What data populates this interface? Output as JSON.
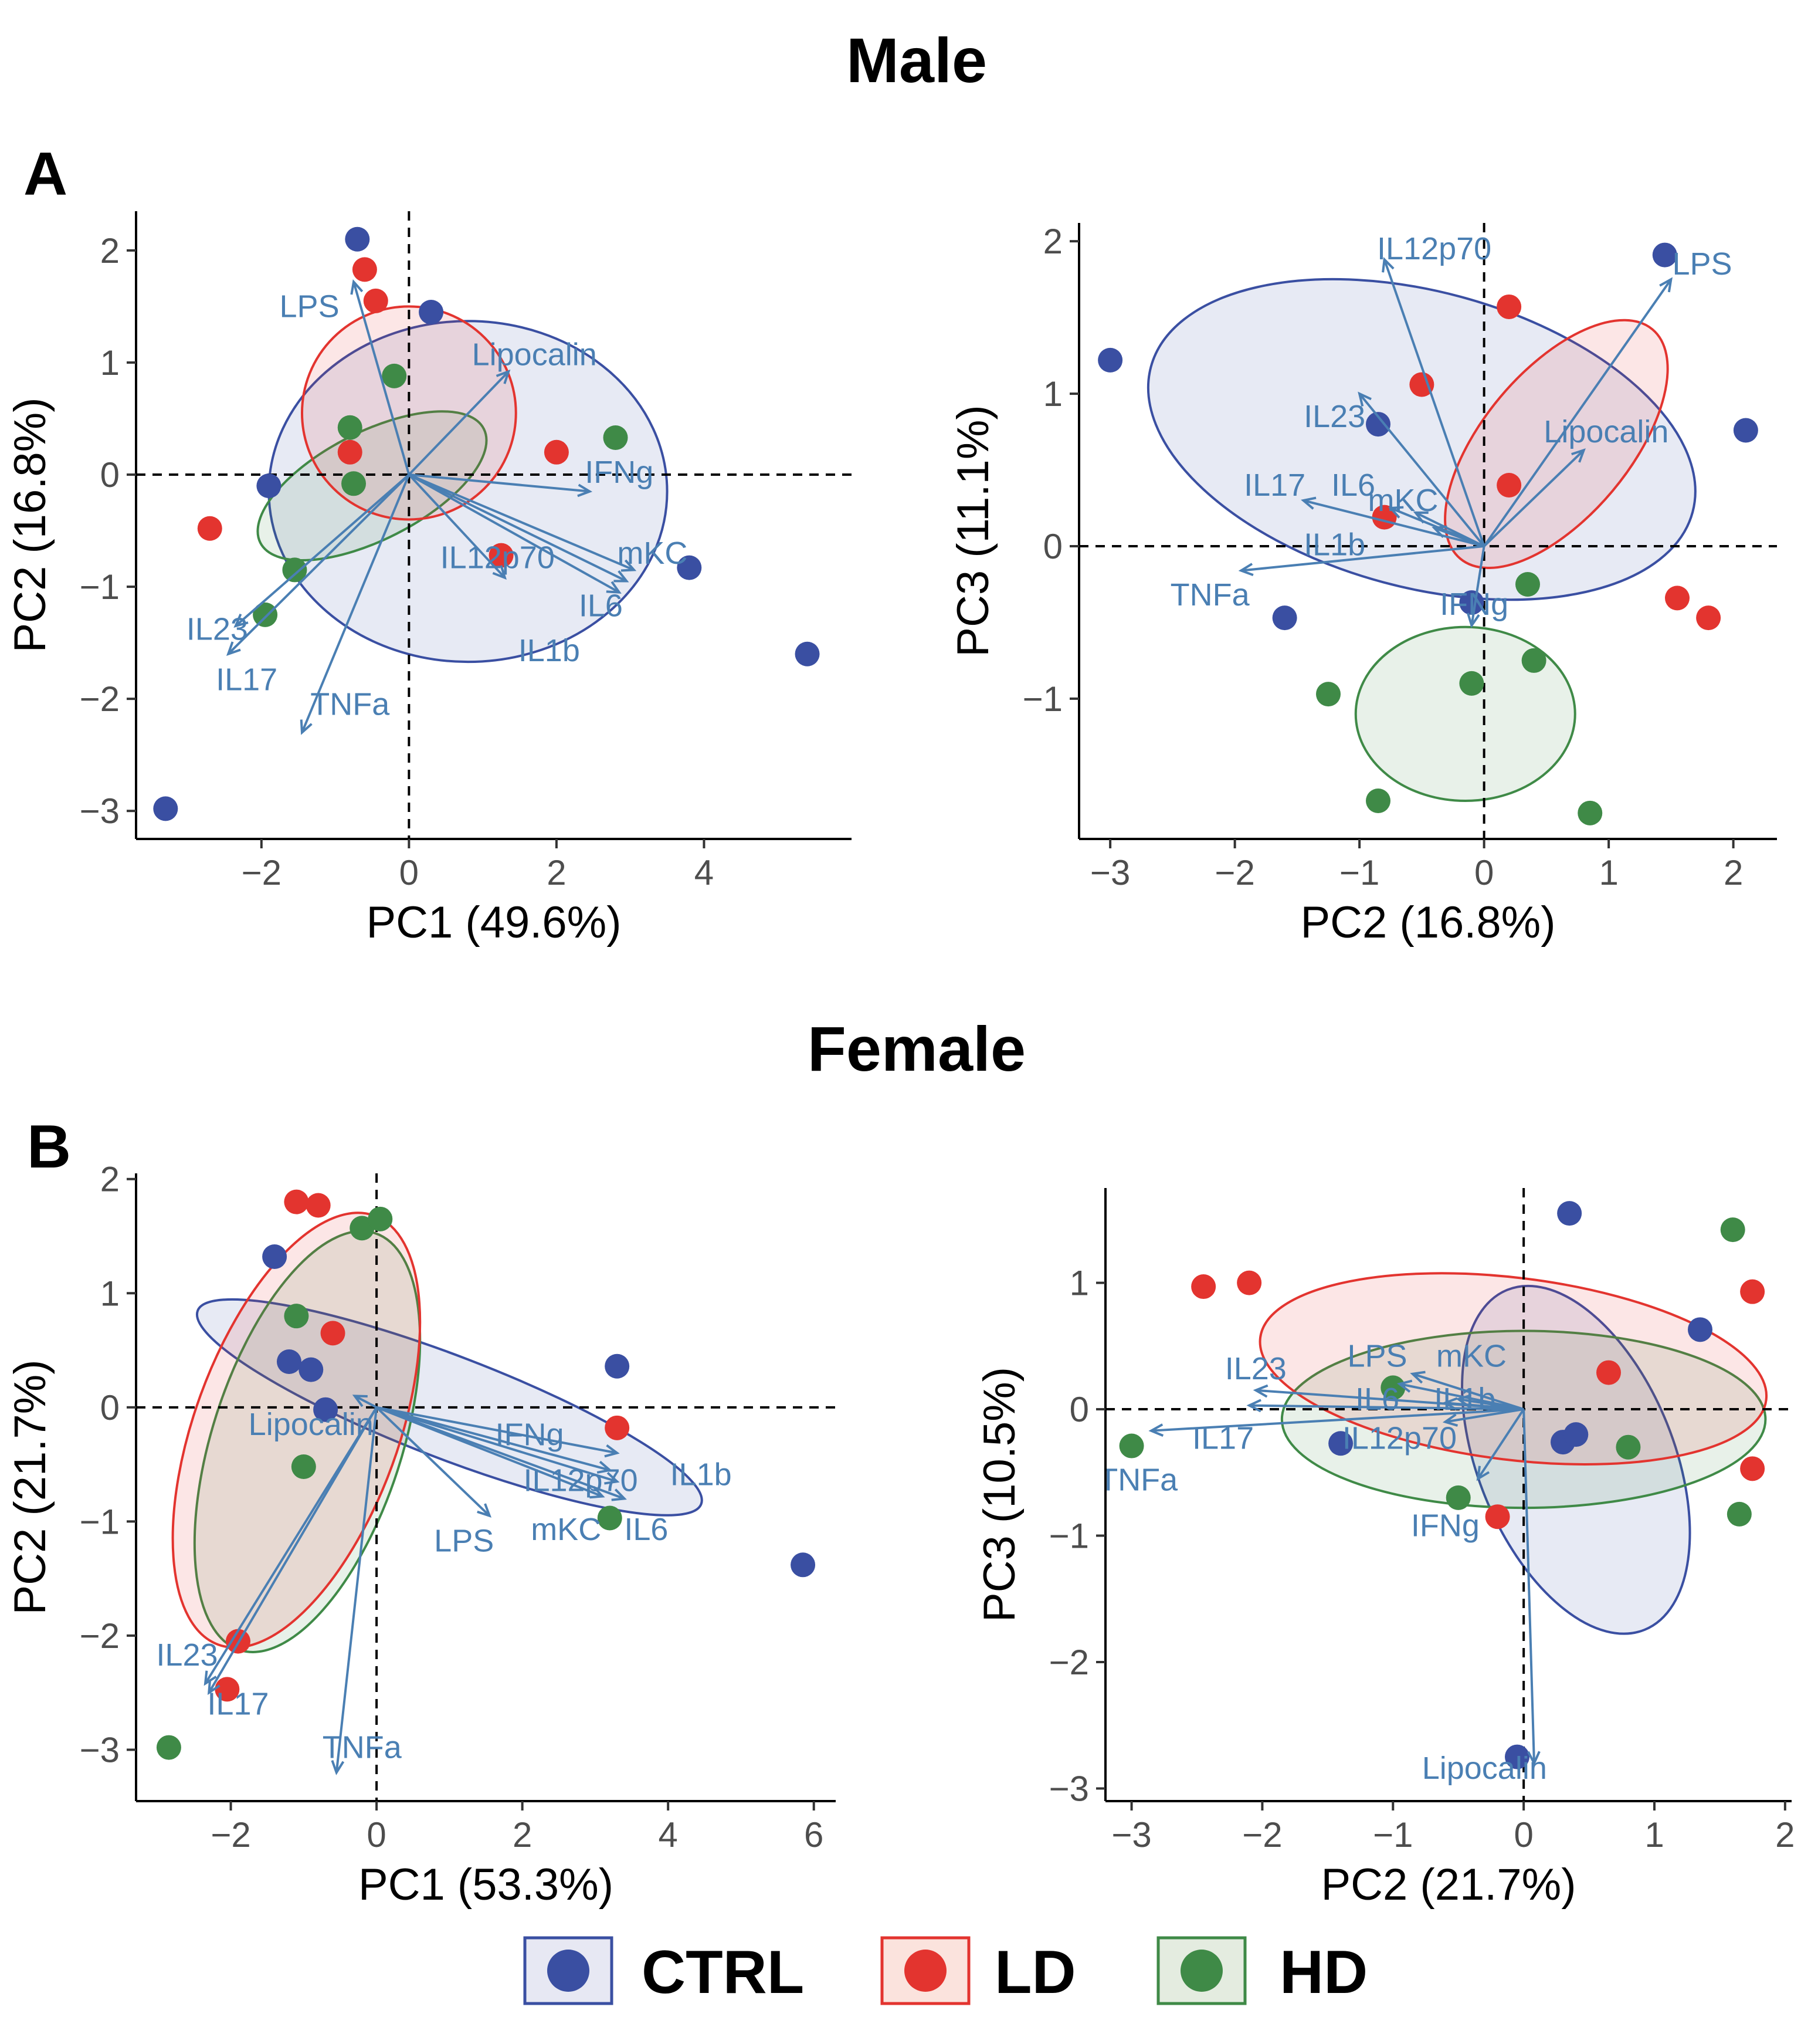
{
  "figure": {
    "sections": [
      {
        "title": "Male",
        "letter": "A"
      },
      {
        "title": "Female",
        "letter": "B"
      }
    ],
    "legend": [
      {
        "label": "CTRL",
        "color": "#3a4fa2",
        "fill": "#e7e8f3"
      },
      {
        "label": "LD",
        "color": "#e3342f",
        "fill": "#fbe3dd"
      },
      {
        "label": "HD",
        "color": "#3f8a47",
        "fill": "#e4ece0"
      }
    ],
    "loading_color": "#4a7fb3"
  },
  "chart_data": [
    {
      "type": "scatter",
      "title": "Male",
      "xlabel": "PC1 (49.6%)",
      "ylabel": "PC2 (16.8%)",
      "xlim": [
        -3.7,
        6.0
      ],
      "ylim": [
        -3.25,
        2.35
      ],
      "xticks": [
        -2,
        0,
        2,
        4
      ],
      "yticks": [
        2,
        1,
        0,
        -1,
        -2,
        -3
      ],
      "xtick_labels": [
        "−2",
        "0",
        "2",
        "4"
      ],
      "ytick_labels": [
        "2",
        "1",
        "0",
        "−1",
        "−2",
        "−3"
      ],
      "series": [
        {
          "name": "CTRL",
          "points": [
            [
              -0.7,
              2.1
            ],
            [
              0.3,
              1.45
            ],
            [
              -1.9,
              -0.1
            ],
            [
              3.8,
              -0.83
            ],
            [
              5.4,
              -1.6
            ],
            [
              -3.3,
              -2.98
            ]
          ]
        },
        {
          "name": "LD",
          "points": [
            [
              -0.6,
              1.83
            ],
            [
              -0.45,
              1.55
            ],
            [
              -0.8,
              0.2
            ],
            [
              2.0,
              0.2
            ],
            [
              -2.7,
              -0.48
            ],
            [
              1.25,
              -0.72
            ]
          ]
        },
        {
          "name": "HD",
          "points": [
            [
              -0.2,
              0.88
            ],
            [
              -0.8,
              0.42
            ],
            [
              -0.75,
              -0.08
            ],
            [
              2.8,
              0.33
            ],
            [
              -1.55,
              -0.85
            ],
            [
              -1.95,
              -1.25
            ]
          ]
        }
      ],
      "ellipses": [
        {
          "group": "CTRL",
          "center": [
            0.8,
            -0.15
          ],
          "semi_axes": [
            2.7,
            1.52
          ],
          "rotation_deg": 0
        },
        {
          "group": "LD",
          "center": [
            0.0,
            0.55
          ],
          "semi_axes": [
            1.45,
            0.95
          ],
          "rotation_deg": 0
        },
        {
          "group": "HD",
          "center": [
            -0.5,
            -0.1
          ],
          "semi_axes": [
            1.7,
            0.48
          ],
          "rotation_deg": -27
        }
      ],
      "loadings": [
        {
          "label": "LPS",
          "tip": [
            -0.75,
            1.72
          ],
          "label_pos": [
            -1.35,
            1.5
          ]
        },
        {
          "label": "Lipocalin",
          "tip": [
            1.35,
            0.92
          ],
          "label_pos": [
            1.7,
            1.07
          ]
        },
        {
          "label": "IFNg",
          "tip": [
            2.45,
            -0.15
          ],
          "label_pos": [
            2.85,
            0.02
          ]
        },
        {
          "label": "IL12p70",
          "tip": [
            1.3,
            -0.92
          ],
          "label_pos": [
            1.2,
            -0.74
          ]
        },
        {
          "label": "mKC",
          "tip": [
            3.05,
            -0.85
          ],
          "label_pos": [
            3.3,
            -0.7
          ]
        },
        {
          "label": "IL6",
          "tip": [
            2.95,
            -0.95
          ],
          "label_pos": [
            2.6,
            -1.17
          ]
        },
        {
          "label": "IL1b",
          "tip": [
            2.85,
            -1.05
          ],
          "label_pos": [
            1.9,
            -1.57
          ]
        },
        {
          "label": "IL23",
          "tip": [
            -2.35,
            -1.35
          ],
          "label_pos": [
            -2.6,
            -1.38
          ]
        },
        {
          "label": "IL17",
          "tip": [
            -2.45,
            -1.6
          ],
          "label_pos": [
            -2.2,
            -1.83
          ]
        },
        {
          "label": "TNFa",
          "tip": [
            -1.45,
            -2.3
          ],
          "label_pos": [
            -0.8,
            -2.05
          ]
        }
      ]
    },
    {
      "type": "scatter",
      "title": "Male",
      "xlabel": "PC2 (16.8%)",
      "ylabel": "PC3 (11.1%)",
      "xlim": [
        -3.25,
        2.35
      ],
      "ylim": [
        -1.92,
        2.12
      ],
      "xticks": [
        -3,
        -2,
        -1,
        0,
        1,
        2
      ],
      "yticks": [
        2,
        1,
        0,
        -1
      ],
      "xtick_labels": [
        "−3",
        "−2",
        "−1",
        "0",
        "1",
        "2"
      ],
      "ytick_labels": [
        "2",
        "1",
        "0",
        "−1"
      ],
      "series": [
        {
          "name": "CTRL",
          "points": [
            [
              -3.0,
              1.22
            ],
            [
              1.45,
              1.91
            ],
            [
              -0.85,
              0.8
            ],
            [
              2.1,
              0.76
            ],
            [
              -1.6,
              -0.47
            ],
            [
              -0.1,
              -0.37
            ]
          ]
        },
        {
          "name": "LD",
          "points": [
            [
              0.2,
              1.57
            ],
            [
              -0.5,
              1.06
            ],
            [
              0.2,
              0.4
            ],
            [
              -0.8,
              0.19
            ],
            [
              1.55,
              -0.34
            ],
            [
              1.8,
              -0.47
            ]
          ]
        },
        {
          "name": "HD",
          "points": [
            [
              0.35,
              -0.25
            ],
            [
              0.4,
              -0.75
            ],
            [
              -0.1,
              -0.9
            ],
            [
              -1.25,
              -0.97
            ],
            [
              -0.85,
              -1.67
            ],
            [
              0.85,
              -1.75
            ]
          ]
        }
      ],
      "ellipses": [
        {
          "group": "CTRL",
          "center": [
            -0.5,
            0.7
          ],
          "semi_axes": [
            2.25,
            0.97
          ],
          "rotation_deg": 15
        },
        {
          "group": "LD",
          "center": [
            0.58,
            0.67
          ],
          "semi_axes": [
            1.2,
            0.48
          ],
          "rotation_deg": -50
        },
        {
          "group": "HD",
          "center": [
            -0.15,
            -1.1
          ],
          "semi_axes": [
            0.88,
            0.57
          ],
          "rotation_deg": 0
        }
      ],
      "loadings": [
        {
          "label": "IL12p70",
          "tip": [
            -0.8,
            1.88
          ],
          "label_pos": [
            -0.4,
            1.95
          ]
        },
        {
          "label": "LPS",
          "tip": [
            1.5,
            1.75
          ],
          "label_pos": [
            1.75,
            1.85
          ]
        },
        {
          "label": "IL23",
          "tip": [
            -1.0,
            1.0
          ],
          "label_pos": [
            -1.2,
            0.85
          ]
        },
        {
          "label": "Lipocalin",
          "tip": [
            0.8,
            0.63
          ],
          "label_pos": [
            0.98,
            0.75
          ]
        },
        {
          "label": "IL17",
          "tip": [
            -1.45,
            0.3
          ],
          "label_pos": [
            -1.68,
            0.4
          ]
        },
        {
          "label": "IL6",
          "tip": [
            -0.75,
            0.25
          ],
          "label_pos": [
            -1.05,
            0.4
          ]
        },
        {
          "label": "mKC",
          "tip": [
            -0.55,
            0.22
          ],
          "label_pos": [
            -0.65,
            0.3
          ]
        },
        {
          "label": "IL1b",
          "tip": [
            -0.4,
            0.12
          ],
          "label_pos": [
            -1.2,
            0.01
          ]
        },
        {
          "label": "TNFa",
          "tip": [
            -1.95,
            -0.16
          ],
          "label_pos": [
            -2.2,
            -0.32
          ]
        },
        {
          "label": "IFNg",
          "tip": [
            -0.1,
            -0.52
          ],
          "label_pos": [
            -0.08,
            -0.38
          ]
        }
      ]
    },
    {
      "type": "scatter",
      "title": "Female",
      "xlabel": "PC1 (53.3%)",
      "ylabel": "PC2 (21.7%)",
      "xlim": [
        -3.3,
        6.3
      ],
      "ylim": [
        -3.45,
        2.05
      ],
      "xticks": [
        -2,
        0,
        2,
        4,
        6
      ],
      "yticks": [
        2,
        1,
        0,
        -1,
        -2,
        -3
      ],
      "xtick_labels": [
        "−2",
        "0",
        "2",
        "4",
        "6"
      ],
      "ytick_labels": [
        "2",
        "1",
        "0",
        "−1",
        "−2",
        "−3"
      ],
      "series": [
        {
          "name": "CTRL",
          "points": [
            [
              -1.4,
              1.32
            ],
            [
              -1.2,
              0.4
            ],
            [
              -0.9,
              0.33
            ],
            [
              -0.7,
              -0.02
            ],
            [
              3.3,
              0.36
            ],
            [
              5.85,
              -1.38
            ]
          ]
        },
        {
          "name": "LD",
          "points": [
            [
              -1.1,
              1.8
            ],
            [
              -0.8,
              1.77
            ],
            [
              -0.6,
              0.65
            ],
            [
              3.3,
              -0.18
            ],
            [
              -1.9,
              -2.05
            ],
            [
              -2.05,
              -2.47
            ]
          ]
        },
        {
          "name": "HD",
          "points": [
            [
              -0.2,
              1.57
            ],
            [
              0.05,
              1.65
            ],
            [
              -1.1,
              0.8
            ],
            [
              -1.0,
              -0.52
            ],
            [
              3.2,
              -0.97
            ],
            [
              -2.85,
              -2.98
            ]
          ]
        }
      ],
      "ellipses": [
        {
          "group": "CTRL",
          "center": [
            1.0,
            0.0
          ],
          "semi_axes": [
            3.7,
            0.45
          ],
          "rotation_deg": 21
        },
        {
          "group": "LD",
          "center": [
            -1.1,
            -0.2
          ],
          "semi_axes": [
            1.4,
            2.0
          ],
          "rotation_deg": 20
        },
        {
          "group": "HD",
          "center": [
            -0.95,
            -0.3
          ],
          "semi_axes": [
            1.3,
            1.92
          ],
          "rotation_deg": 18
        }
      ],
      "loadings": [
        {
          "label": "Lipocalin",
          "tip": [
            -0.3,
            0.1
          ],
          "label_pos": [
            -0.9,
            -0.15
          ]
        },
        {
          "label": "IFNg",
          "tip": [
            3.3,
            -0.4
          ],
          "label_pos": [
            2.1,
            -0.24
          ]
        },
        {
          "label": "IL12p70",
          "tip": [
            3.3,
            -0.65
          ],
          "label_pos": [
            2.8,
            -0.64
          ]
        },
        {
          "label": "IL1b",
          "tip": [
            3.2,
            -0.55
          ],
          "label_pos": [
            4.45,
            -0.59
          ]
        },
        {
          "label": "mKC",
          "tip": [
            3.1,
            -0.78
          ],
          "label_pos": [
            2.6,
            -1.07
          ]
        },
        {
          "label": "IL6",
          "tip": [
            3.4,
            -0.8
          ],
          "label_pos": [
            3.7,
            -1.07
          ]
        },
        {
          "label": "LPS",
          "tip": [
            1.55,
            -0.95
          ],
          "label_pos": [
            1.2,
            -1.17
          ]
        },
        {
          "label": "IL23",
          "tip": [
            -2.3,
            -2.5
          ],
          "label_pos": [
            -2.6,
            -2.17
          ]
        },
        {
          "label": "IL17",
          "tip": [
            -2.35,
            -2.42
          ],
          "label_pos": [
            -1.9,
            -2.6
          ]
        },
        {
          "label": "TNFa",
          "tip": [
            -0.55,
            -3.2
          ],
          "label_pos": [
            -0.2,
            -2.98
          ]
        }
      ]
    },
    {
      "type": "scatter",
      "title": "Female",
      "xlabel": "PC2 (21.7%)",
      "ylabel": "PC3 (10.5%)",
      "xlim": [
        -3.2,
        2.05
      ],
      "ylim": [
        -3.1,
        1.75
      ],
      "xticks": [
        -3,
        -2,
        -1,
        0,
        1,
        2
      ],
      "yticks": [
        1,
        0,
        -1,
        -2,
        -3
      ],
      "xtick_labels": [
        "−3",
        "−2",
        "−1",
        "0",
        "1",
        "2"
      ],
      "ytick_labels": [
        "1",
        "0",
        "−1",
        "−2",
        "−3"
      ],
      "series": [
        {
          "name": "CTRL",
          "points": [
            [
              0.35,
              1.55
            ],
            [
              1.35,
              0.63
            ],
            [
              -1.4,
              -0.27
            ],
            [
              0.3,
              -0.26
            ],
            [
              0.4,
              -0.2
            ],
            [
              -0.05,
              -2.75
            ]
          ]
        },
        {
          "name": "LD",
          "points": [
            [
              -2.45,
              0.97
            ],
            [
              -2.1,
              1.0
            ],
            [
              0.65,
              0.29
            ],
            [
              1.75,
              0.93
            ],
            [
              1.75,
              -0.47
            ],
            [
              -0.2,
              -0.85
            ]
          ]
        },
        {
          "name": "HD",
          "points": [
            [
              1.6,
              1.42
            ],
            [
              -1.0,
              0.17
            ],
            [
              0.8,
              -0.3
            ],
            [
              -0.5,
              -0.7
            ],
            [
              1.65,
              -0.83
            ],
            [
              -3.0,
              -0.29
            ]
          ]
        }
      ],
      "ellipses": [
        {
          "group": "CTRL",
          "center": [
            0.4,
            -0.4
          ],
          "semi_axes": [
            0.75,
            1.45
          ],
          "rotation_deg": -22
        },
        {
          "group": "LD",
          "center": [
            -0.08,
            0.32
          ],
          "semi_axes": [
            1.95,
            0.72
          ],
          "rotation_deg": 7
        },
        {
          "group": "HD",
          "center": [
            0.0,
            -0.08
          ],
          "semi_axes": [
            1.85,
            0.7
          ],
          "rotation_deg": 0
        }
      ],
      "loadings": [
        {
          "label": "IL23",
          "tip": [
            -2.05,
            0.15
          ],
          "label_pos": [
            -2.05,
            0.32
          ]
        },
        {
          "label": "LPS",
          "tip": [
            -0.95,
            0.2
          ],
          "label_pos": [
            -1.12,
            0.42
          ]
        },
        {
          "label": "mKC",
          "tip": [
            -0.85,
            0.28
          ],
          "label_pos": [
            -0.4,
            0.42
          ]
        },
        {
          "label": "IL6",
          "tip": [
            -0.6,
            0.05
          ],
          "label_pos": [
            -1.12,
            0.08
          ]
        },
        {
          "label": "IL1b",
          "tip": [
            -0.5,
            0.08
          ],
          "label_pos": [
            -0.45,
            0.08
          ]
        },
        {
          "label": "IL17",
          "tip": [
            -2.1,
            0.03
          ],
          "label_pos": [
            -2.3,
            -0.23
          ]
        },
        {
          "label": "IL12p70",
          "tip": [
            -0.6,
            -0.1
          ],
          "label_pos": [
            -0.95,
            -0.23
          ]
        },
        {
          "label": "TNFa",
          "tip": [
            -2.85,
            -0.17
          ],
          "label_pos": [
            -2.95,
            -0.56
          ]
        },
        {
          "label": "IFNg",
          "tip": [
            -0.35,
            -0.55
          ],
          "label_pos": [
            -0.6,
            -0.92
          ]
        },
        {
          "label": "Lipocalin",
          "tip": [
            0.08,
            -2.8
          ],
          "label_pos": [
            -0.3,
            -2.84
          ]
        }
      ]
    }
  ]
}
